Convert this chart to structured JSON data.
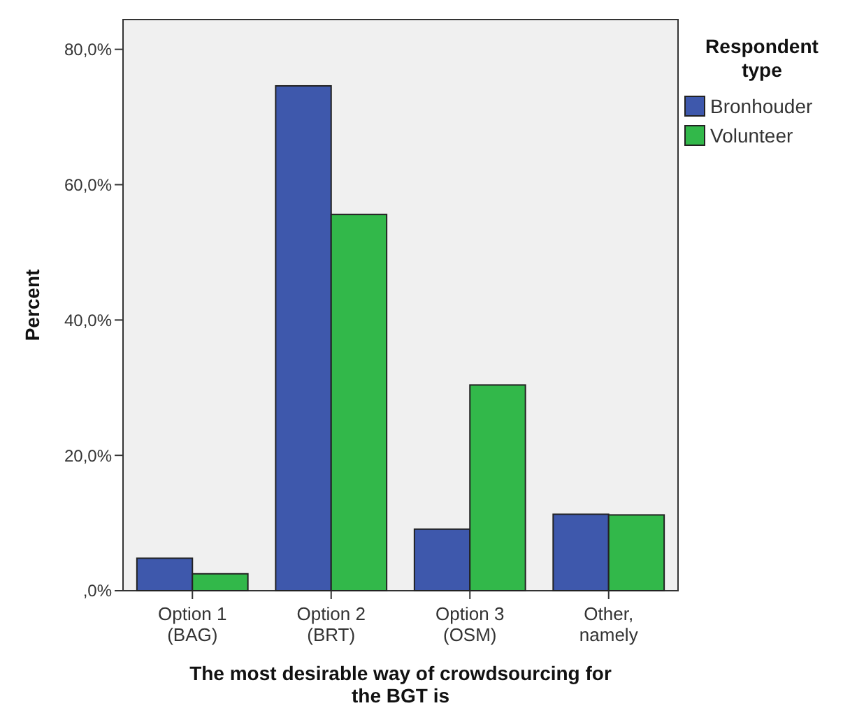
{
  "chart_data": {
    "type": "bar",
    "xlabel": "The most desirable way of crowdsourcing for the BGT is",
    "ylabel": "Percent",
    "legend_title": "Respondent type",
    "legend": "top right",
    "grid": false,
    "categories": [
      "Option 1 (BAG)",
      "Option 2 (BRT)",
      "Option 3 (OSM)",
      "Other, namely"
    ],
    "series": [
      {
        "name": "Bronhouder",
        "color": "#3e58ac",
        "values": [
          4.8,
          74.6,
          9.1,
          11.3
        ]
      },
      {
        "name": "Volunteer",
        "color": "#32b84a",
        "values": [
          2.5,
          55.6,
          30.4,
          11.2
        ]
      }
    ],
    "ylim": [
      0,
      84.4
    ],
    "yticks": [
      {
        "value": 0,
        "label": ",0%"
      },
      {
        "value": 20,
        "label": "20,0%"
      },
      {
        "value": 40,
        "label": "40,0%"
      },
      {
        "value": 60,
        "label": "60,0%"
      },
      {
        "value": 80,
        "label": "80,0%"
      }
    ]
  }
}
